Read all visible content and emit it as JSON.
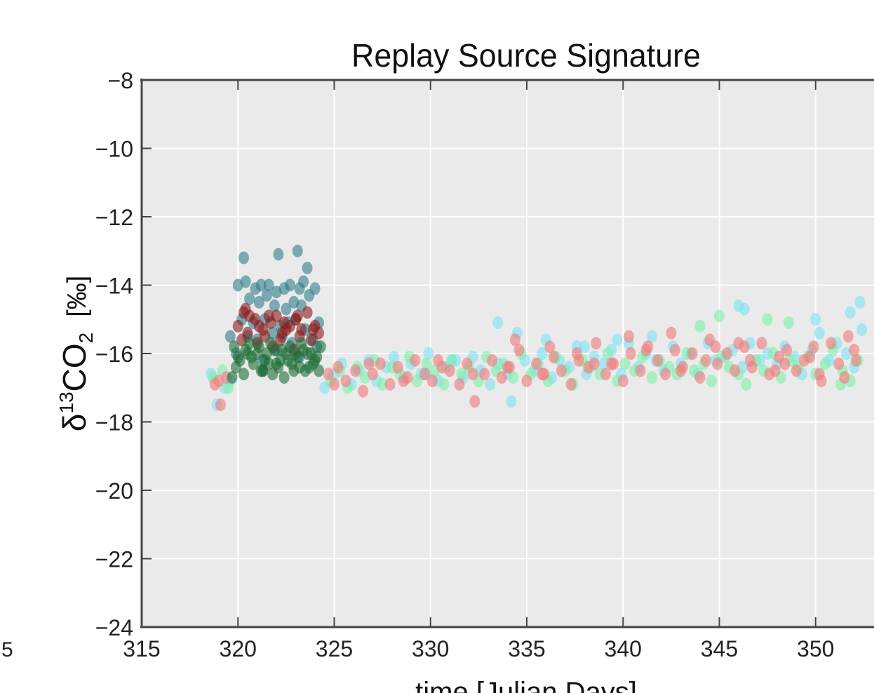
{
  "chart_data": {
    "type": "scatter",
    "title": "Replay Source Signature",
    "xlabel": "time [Julian Days]",
    "ylabel": {
      "prefix": "δ",
      "isotope": "13",
      "molecule": "CO",
      "subscript": "2",
      "unit": "[‰]"
    },
    "xlim": [
      315,
      352.8
    ],
    "ylim": [
      -24,
      -8
    ],
    "xticks": [
      315,
      320,
      325,
      330,
      335,
      340,
      345,
      350
    ],
    "yticks": [
      -24,
      -22,
      -20,
      -18,
      -16,
      -14,
      -12,
      -10,
      -8
    ],
    "xtick_labels": [
      "315",
      "320",
      "325",
      "330",
      "335",
      "340",
      "345",
      "350"
    ],
    "ytick_labels": [
      "−24",
      "−22",
      "−20",
      "−18",
      "−16",
      "−14",
      "−12",
      "−10",
      "−8"
    ],
    "offpanel_label": "5",
    "grid": true,
    "background": "#eaeaea",
    "series": [
      {
        "color": "#2e7d8c",
        "opacity": 0.6,
        "x": [
          320.3,
          322.1,
          323.1,
          320.0,
          320.4,
          320.9,
          321.2,
          321.6,
          322.0,
          322.4,
          322.7,
          323.2,
          323.4,
          323.6,
          324.0,
          323.7,
          320.6,
          321.1,
          321.5,
          321.9,
          322.5,
          322.9,
          323.3,
          320.2,
          320.8,
          321.4,
          322.2,
          322.6,
          323.0,
          323.5,
          324.2,
          320.5,
          321.0,
          321.8,
          322.3,
          322.8,
          323.9,
          319.6,
          319.9,
          321.3,
          322.0,
          323.2,
          324.1
        ],
        "y": [
          -13.2,
          -13.1,
          -13.0,
          -14.0,
          -13.9,
          -14.1,
          -14.0,
          -14.0,
          -14.2,
          -14.1,
          -14.0,
          -14.1,
          -13.9,
          -13.5,
          -14.1,
          -14.3,
          -14.4,
          -14.5,
          -14.3,
          -14.6,
          -14.7,
          -14.5,
          -14.6,
          -15.0,
          -15.1,
          -15.0,
          -15.2,
          -15.1,
          -15.0,
          -15.3,
          -15.1,
          -15.5,
          -15.6,
          -15.4,
          -15.5,
          -15.7,
          -15.6,
          -15.5,
          -16.0,
          -16.2,
          -15.9,
          -16.1,
          -15.8
        ]
      },
      {
        "color": "#8b1a1a",
        "opacity": 0.6,
        "x": [
          320.0,
          320.3,
          320.6,
          320.9,
          321.3,
          321.7,
          322.0,
          322.3,
          322.7,
          323.0,
          323.3,
          323.6,
          324.0,
          324.2,
          320.2,
          320.5,
          321.0,
          321.4,
          321.8,
          322.2,
          322.5,
          322.9,
          323.2,
          323.8,
          320.4,
          321.1,
          321.6,
          322.4,
          323.1,
          323.9
        ],
        "y": [
          -15.2,
          -14.8,
          -14.9,
          -15.0,
          -15.3,
          -15.1,
          -14.9,
          -15.4,
          -15.2,
          -15.0,
          -15.3,
          -14.8,
          -15.2,
          -15.4,
          -15.6,
          -15.4,
          -15.7,
          -15.5,
          -15.8,
          -15.6,
          -15.3,
          -15.9,
          -15.5,
          -15.6,
          -14.7,
          -15.2,
          -14.9,
          -15.1,
          -14.9,
          -15.3
        ]
      },
      {
        "color": "#1d6e35",
        "opacity": 0.6,
        "x": [
          319.8,
          320.1,
          320.4,
          320.7,
          321.0,
          321.3,
          321.6,
          321.9,
          322.2,
          322.5,
          322.8,
          323.1,
          323.4,
          323.7,
          324.0,
          324.3,
          319.9,
          320.3,
          320.8,
          321.2,
          321.5,
          321.8,
          322.1,
          322.6,
          322.9,
          323.2,
          323.6,
          323.9,
          324.2,
          320.0,
          320.6,
          321.1,
          321.4,
          321.7,
          322.3,
          322.7,
          323.3,
          323.8,
          319.7,
          320.5,
          321.3,
          322.0,
          322.4,
          323.0,
          323.5,
          324.1
        ],
        "y": [
          -15.8,
          -16.2,
          -15.9,
          -16.1,
          -16.0,
          -16.5,
          -16.3,
          -15.9,
          -16.2,
          -16.0,
          -16.3,
          -16.1,
          -15.9,
          -16.4,
          -16.2,
          -15.8,
          -16.4,
          -16.6,
          -16.3,
          -16.5,
          -16.0,
          -16.6,
          -16.4,
          -16.2,
          -16.5,
          -16.4,
          -16.0,
          -16.3,
          -16.5,
          -16.1,
          -15.7,
          -15.8,
          -16.2,
          -15.7,
          -15.9,
          -15.8,
          -15.7,
          -16.0,
          -16.7,
          -16.0,
          -16.5,
          -16.3,
          -16.7,
          -16.0,
          -16.5,
          -16.1
        ],
        "note_omit": true
      },
      {
        "color": "#f08080",
        "opacity": 0.65,
        "x": [
          318.8,
          319.1,
          319.4,
          319.0,
          324.7,
          325.2,
          325.6,
          326.1,
          326.5,
          327.0,
          327.4,
          327.9,
          328.3,
          328.8,
          329.2,
          329.7,
          330.1,
          330.6,
          331.0,
          331.5,
          331.9,
          332.3,
          332.8,
          333.2,
          333.7,
          334.1,
          334.6,
          335.0,
          335.5,
          335.9,
          336.4,
          336.8,
          337.3,
          337.7,
          338.2,
          338.6,
          339.1,
          339.5,
          340.0,
          340.4,
          340.9,
          341.3,
          341.8,
          342.2,
          342.7,
          343.1,
          343.6,
          344.0,
          344.5,
          344.9,
          345.4,
          345.8,
          346.3,
          346.7,
          347.2,
          347.6,
          348.1,
          348.5,
          349.0,
          349.4,
          349.9,
          350.3,
          350.8,
          351.2,
          351.7,
          352.1,
          325.0,
          326.8,
          328.6,
          330.4,
          332.2,
          334.0,
          335.8,
          337.6,
          339.4,
          341.2,
          343.0,
          344.8,
          346.6,
          348.4,
          350.2,
          352.0,
          334.4,
          336.2,
          338.5,
          340.3,
          342.5,
          344.3,
          346.0,
          347.9,
          349.7,
          351.5
        ],
        "y": [
          -16.9,
          -17.5,
          -16.7,
          -16.8,
          -16.6,
          -16.4,
          -16.8,
          -16.5,
          -17.1,
          -16.6,
          -16.3,
          -16.9,
          -16.4,
          -16.7,
          -16.2,
          -16.6,
          -16.8,
          -16.4,
          -16.5,
          -16.9,
          -16.3,
          -17.4,
          -16.6,
          -16.2,
          -16.7,
          -16.4,
          -15.9,
          -16.8,
          -16.3,
          -16.6,
          -16.1,
          -16.5,
          -16.9,
          -16.2,
          -16.4,
          -15.7,
          -16.6,
          -16.3,
          -16.8,
          -16.0,
          -16.5,
          -15.8,
          -16.2,
          -16.6,
          -15.9,
          -16.4,
          -16.0,
          -16.7,
          -15.6,
          -16.3,
          -16.0,
          -16.5,
          -15.8,
          -16.4,
          -15.7,
          -16.6,
          -16.1,
          -15.9,
          -16.5,
          -16.2,
          -15.8,
          -16.8,
          -15.7,
          -16.3,
          -15.5,
          -16.2,
          -16.9,
          -16.3,
          -16.8,
          -16.2,
          -16.6,
          -16.4,
          -16.6,
          -16.0,
          -16.3,
          -15.9,
          -16.5,
          -15.8,
          -16.2,
          -16.3,
          -16.6,
          -15.9,
          -15.6,
          -15.8,
          -16.3,
          -15.5,
          -15.4,
          -16.2,
          -15.7,
          -16.5,
          -16.1,
          -16.7
        ]
      },
      {
        "color": "#79e3f5",
        "opacity": 0.6,
        "x": [
          318.6,
          318.9,
          319.3,
          319.6,
          324.5,
          325.0,
          325.4,
          325.9,
          326.3,
          326.8,
          327.2,
          327.7,
          328.1,
          328.6,
          329.0,
          329.5,
          329.9,
          330.4,
          330.8,
          331.3,
          331.7,
          332.2,
          332.6,
          333.1,
          333.5,
          334.0,
          334.5,
          334.9,
          335.4,
          335.8,
          336.3,
          336.7,
          337.2,
          337.6,
          338.1,
          338.5,
          339.0,
          339.4,
          339.9,
          340.3,
          340.8,
          341.2,
          341.7,
          342.1,
          342.6,
          343.0,
          343.5,
          343.9,
          344.4,
          344.8,
          345.3,
          345.7,
          346.2,
          346.6,
          347.1,
          347.5,
          348.0,
          348.4,
          348.9,
          349.3,
          349.8,
          350.2,
          350.7,
          351.1,
          351.6,
          352.0,
          352.4,
          333.5,
          334.2,
          336.0,
          338.0,
          339.7,
          341.5,
          346.0,
          346.3,
          350.0,
          351.8,
          352.3,
          329.8,
          331.1
        ],
        "y": [
          -16.6,
          -17.5,
          -17.0,
          -16.8,
          -17.0,
          -16.6,
          -16.3,
          -16.9,
          -16.5,
          -16.2,
          -16.8,
          -16.4,
          -16.1,
          -16.7,
          -16.3,
          -16.6,
          -16.0,
          -16.8,
          -16.4,
          -16.2,
          -16.7,
          -16.1,
          -16.5,
          -16.9,
          -16.3,
          -16.6,
          -15.4,
          -16.2,
          -16.5,
          -16.0,
          -16.7,
          -16.2,
          -16.4,
          -15.8,
          -16.6,
          -16.1,
          -16.3,
          -15.9,
          -16.6,
          -15.7,
          -16.4,
          -16.0,
          -16.2,
          -16.5,
          -15.8,
          -16.3,
          -16.0,
          -16.6,
          -15.7,
          -16.2,
          -16.1,
          -15.9,
          -16.4,
          -15.7,
          -16.2,
          -16.0,
          -16.3,
          -15.8,
          -16.1,
          -16.6,
          -15.9,
          -15.4,
          -16.2,
          -15.7,
          -16.0,
          -16.4,
          -15.3,
          -15.1,
          -17.4,
          -15.6,
          -15.8,
          -15.6,
          -15.5,
          -14.6,
          -14.7,
          -15.0,
          -14.8,
          -14.5,
          -16.6,
          -16.2
        ]
      },
      {
        "color": "#7cf0a8",
        "opacity": 0.6,
        "x": [
          318.7,
          319.2,
          319.5,
          324.8,
          325.3,
          325.7,
          326.2,
          326.6,
          327.1,
          327.5,
          328.0,
          328.4,
          328.9,
          329.3,
          329.8,
          330.2,
          330.7,
          331.1,
          331.6,
          332.0,
          332.5,
          332.9,
          333.4,
          333.8,
          334.3,
          334.7,
          335.2,
          335.6,
          336.1,
          336.5,
          337.0,
          337.4,
          337.9,
          338.3,
          338.8,
          339.2,
          339.7,
          340.1,
          340.6,
          341.0,
          341.5,
          341.9,
          342.4,
          342.8,
          343.3,
          343.7,
          344.2,
          344.6,
          345.1,
          345.5,
          346.0,
          346.4,
          346.9,
          347.3,
          347.8,
          348.2,
          348.7,
          349.1,
          349.6,
          350.0,
          350.5,
          350.9,
          351.4,
          351.8,
          352.2,
          345.0,
          347.5,
          344.0,
          348.6,
          351.3
        ],
        "y": [
          -16.7,
          -16.5,
          -17.0,
          -16.8,
          -16.5,
          -17.0,
          -16.4,
          -16.7,
          -16.2,
          -16.9,
          -16.4,
          -16.6,
          -16.1,
          -16.8,
          -16.3,
          -16.5,
          -16.9,
          -16.2,
          -16.6,
          -16.4,
          -16.8,
          -16.1,
          -16.5,
          -16.3,
          -16.7,
          -16.0,
          -16.6,
          -16.3,
          -16.8,
          -16.1,
          -16.5,
          -16.9,
          -16.2,
          -16.4,
          -16.6,
          -16.0,
          -16.8,
          -16.3,
          -16.5,
          -16.1,
          -16.7,
          -16.2,
          -16.4,
          -16.6,
          -16.0,
          -16.5,
          -16.3,
          -16.8,
          -16.1,
          -16.4,
          -16.6,
          -16.9,
          -16.2,
          -16.5,
          -16.0,
          -16.7,
          -16.2,
          -16.4,
          -16.1,
          -16.6,
          -16.3,
          -15.9,
          -16.5,
          -16.8,
          -16.2,
          -14.9,
          -15.0,
          -15.2,
          -15.1,
          -16.9
        ]
      }
    ]
  }
}
